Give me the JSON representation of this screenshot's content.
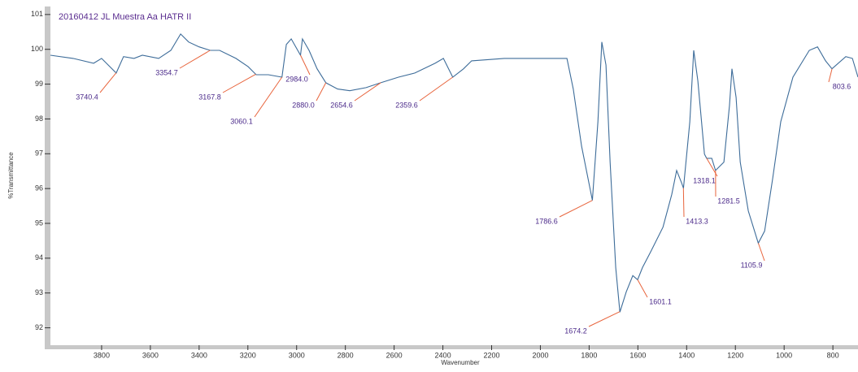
{
  "chart_data": {
    "type": "line",
    "title": "20160412 JL Muestra Aa HATR II",
    "x_label": "Wavenumber",
    "y_label": "%Transmittance",
    "x": [
      4010,
      3917,
      3833,
      3800,
      3740,
      3710,
      3667,
      3633,
      3566,
      3516,
      3476,
      3443,
      3400,
      3354.7,
      3316,
      3249,
      3199,
      3166,
      3116,
      3060,
      3042,
      3022,
      2984,
      2976,
      2949,
      2916,
      2880,
      2832,
      2782,
      2715,
      2655,
      2582,
      2515,
      2432,
      2398,
      2359.6,
      2315,
      2282,
      2148,
      2015,
      1891,
      1865,
      1831,
      1786.6,
      1764,
      1748,
      1731,
      1714,
      1691,
      1674,
      1648,
      1621,
      1601,
      1581,
      1547,
      1497,
      1461,
      1441,
      1421,
      1413,
      1387,
      1371,
      1354,
      1327,
      1318,
      1297,
      1281.5,
      1247,
      1224,
      1214,
      1197,
      1180,
      1147,
      1106,
      1080,
      1047,
      1014,
      964,
      897,
      863,
      830,
      803.6,
      747,
      720,
      697
    ],
    "series": [
      {
        "name": "20160412 JL Muestra Aa HATR II",
        "color": "#3d6c99",
        "values": [
          99.83,
          99.74,
          99.6,
          99.74,
          99.32,
          99.79,
          99.74,
          99.83,
          99.74,
          99.97,
          100.44,
          100.21,
          100.07,
          99.97,
          99.97,
          99.74,
          99.5,
          99.27,
          99.27,
          99.2,
          100.14,
          100.3,
          99.83,
          100.3,
          99.97,
          99.44,
          99.04,
          98.86,
          98.81,
          98.9,
          99.04,
          99.2,
          99.32,
          99.6,
          99.74,
          99.2,
          99.44,
          99.67,
          99.74,
          99.74,
          99.74,
          98.86,
          97.22,
          95.66,
          97.92,
          100.21,
          99.55,
          96.76,
          93.73,
          92.45,
          93.03,
          93.5,
          93.38,
          93.73,
          94.19,
          94.89,
          95.83,
          96.52,
          96.17,
          96.01,
          97.92,
          99.97,
          99.09,
          96.99,
          96.87,
          96.87,
          96.52,
          96.76,
          98.39,
          99.44,
          98.62,
          96.76,
          95.36,
          94.43,
          94.78,
          96.29,
          97.92,
          99.2,
          99.97,
          100.07,
          99.67,
          99.44,
          99.79,
          99.74,
          99.2
        ]
      }
    ],
    "peaks": [
      3740.4,
      3354.7,
      3167.8,
      3060.1,
      {
        "value": 2984,
        "label": "2984.0"
      },
      {
        "value": 2880,
        "label": "2880.0"
      },
      2654.6,
      2359.6,
      1786.6,
      1674.2,
      1601.1,
      1413.3,
      1318.1,
      1281.5,
      1105.9,
      803.6
    ],
    "xlim": [
      4010,
      697
    ],
    "ylim": [
      91.5,
      101.23
    ],
    "xticks": [
      3800,
      3600,
      3400,
      3200,
      3000,
      2800,
      2600,
      2400,
      2200,
      2000,
      1800,
      1600,
      1400,
      1200,
      1000,
      800
    ],
    "yticks": [
      92,
      93,
      94,
      95,
      96,
      97,
      98,
      99,
      100,
      101
    ]
  }
}
